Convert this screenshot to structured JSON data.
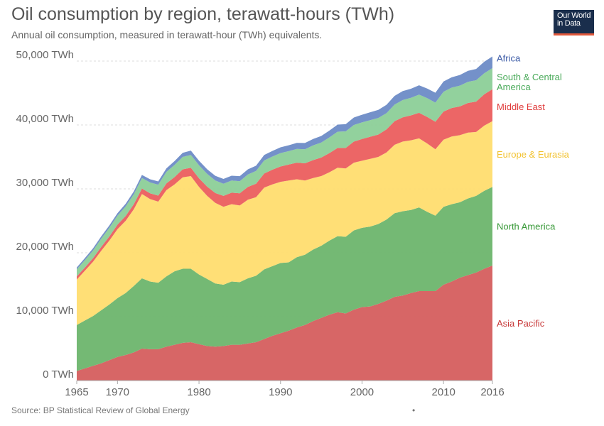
{
  "header": {
    "title": "Oil consumption by region, terawatt-hours (TWh)",
    "subtitle": "Annual oil consumption, measured in terawatt-hour (TWh) equivalents."
  },
  "logo": {
    "line1": "Our World",
    "line2": "in Data"
  },
  "footer": {
    "source": "Source: BP Statistical Review of Global Energy",
    "dot": "•"
  },
  "chart_data": {
    "type": "area",
    "stacked": true,
    "title": "Oil consumption by region, terawatt-hours (TWh)",
    "subtitle": "Annual oil consumption, measured in terawatt-hour (TWh) equivalents.",
    "xlabel": "",
    "ylabel": "",
    "xlim": [
      1965,
      2016
    ],
    "ylim": [
      0,
      50000
    ],
    "grid": true,
    "legend_position": "right (labels at series ends)",
    "x_ticks": [
      1965,
      1970,
      1980,
      1990,
      2000,
      2010,
      2016
    ],
    "y_ticks": [
      {
        "value": 0,
        "label": "0 TWh"
      },
      {
        "value": 10000,
        "label": "10,000 TWh"
      },
      {
        "value": 20000,
        "label": "20,000 TWh"
      },
      {
        "value": 30000,
        "label": "30,000 TWh"
      },
      {
        "value": 40000,
        "label": "40,000 TWh"
      },
      {
        "value": 50000,
        "label": "50,000 TWh"
      }
    ],
    "x": [
      1965,
      1966,
      1967,
      1968,
      1969,
      1970,
      1971,
      1972,
      1973,
      1974,
      1975,
      1976,
      1977,
      1978,
      1979,
      1980,
      1981,
      1982,
      1983,
      1984,
      1985,
      1986,
      1987,
      1988,
      1989,
      1990,
      1991,
      1992,
      1993,
      1994,
      1995,
      1996,
      1997,
      1998,
      1999,
      2000,
      2001,
      2002,
      2003,
      2004,
      2005,
      2006,
      2007,
      2008,
      2009,
      2010,
      2011,
      2012,
      2013,
      2014,
      2015,
      2016
    ],
    "series": [
      {
        "name": "Asia Pacific",
        "color": "#d55e5e",
        "values": [
          1500,
          1900,
          2300,
          2700,
          3200,
          3700,
          4000,
          4400,
          5000,
          4900,
          4900,
          5300,
          5600,
          5900,
          6000,
          5700,
          5400,
          5300,
          5400,
          5600,
          5600,
          5800,
          6000,
          6500,
          7000,
          7400,
          7800,
          8300,
          8700,
          9300,
          9800,
          10300,
          10700,
          10500,
          11100,
          11500,
          11600,
          12000,
          12500,
          13100,
          13300,
          13700,
          14000,
          14000,
          14000,
          15000,
          15500,
          16100,
          16500,
          16900,
          17500,
          18000
        ]
      },
      {
        "name": "North America",
        "color": "#6db56d",
        "values": [
          7200,
          7500,
          7800,
          8300,
          8700,
          9200,
          9700,
          10400,
          11000,
          10600,
          10400,
          11000,
          11500,
          11600,
          11500,
          10900,
          10500,
          9900,
          9600,
          9900,
          9800,
          10200,
          10400,
          10900,
          10900,
          11000,
          10700,
          11000,
          11000,
          11200,
          11300,
          11600,
          11900,
          12000,
          12400,
          12400,
          12500,
          12500,
          12700,
          13100,
          13200,
          13000,
          13100,
          12400,
          11800,
          12200,
          12100,
          11800,
          12000,
          12000,
          12200,
          12300
        ]
      },
      {
        "name": "Europe & Eurasia",
        "color": "#ffdd6f",
        "values": [
          7100,
          7800,
          8500,
          9300,
          10000,
          10800,
          11300,
          12000,
          13200,
          12900,
          12700,
          13500,
          13600,
          14300,
          14500,
          13700,
          13000,
          12600,
          12200,
          12100,
          12000,
          12300,
          12300,
          12800,
          12800,
          12700,
          12800,
          12200,
          11600,
          11200,
          10900,
          10700,
          10700,
          10700,
          10600,
          10500,
          10600,
          10500,
          10500,
          10700,
          10900,
          10900,
          10800,
          10700,
          10400,
          10500,
          10600,
          10500,
          10300,
          10000,
          10200,
          10300
        ]
      },
      {
        "name": "Middle East",
        "color": "#eb5e5e",
        "values": [
          500,
          500,
          550,
          600,
          650,
          700,
          750,
          800,
          850,
          900,
          950,
          1050,
          1150,
          1250,
          1300,
          1350,
          1450,
          1550,
          1700,
          1800,
          1900,
          2000,
          2100,
          2200,
          2300,
          2400,
          2500,
          2600,
          2700,
          2800,
          2900,
          3000,
          3100,
          3200,
          3300,
          3400,
          3450,
          3500,
          3600,
          3700,
          3800,
          3900,
          4000,
          4150,
          4300,
          4400,
          4450,
          4500,
          4650,
          4750,
          4900,
          5000
        ]
      },
      {
        "name": "South & Central America",
        "color": "#8ccf98",
        "values": [
          1100,
          1150,
          1200,
          1300,
          1350,
          1400,
          1500,
          1550,
          1650,
          1700,
          1700,
          1800,
          1900,
          1950,
          2000,
          2050,
          2000,
          1950,
          1900,
          1900,
          1900,
          1950,
          2000,
          2050,
          2050,
          2100,
          2100,
          2150,
          2200,
          2300,
          2350,
          2450,
          2550,
          2600,
          2600,
          2600,
          2600,
          2600,
          2550,
          2600,
          2700,
          2750,
          2850,
          2950,
          3000,
          3100,
          3200,
          3250,
          3300,
          3350,
          3300,
          3300
        ]
      },
      {
        "name": "Africa",
        "color": "#6d8bc6",
        "values": [
          300,
          320,
          340,
          360,
          380,
          400,
          420,
          450,
          480,
          500,
          520,
          560,
          600,
          640,
          680,
          700,
          720,
          740,
          750,
          760,
          780,
          800,
          830,
          850,
          880,
          900,
          920,
          950,
          980,
          1000,
          1030,
          1080,
          1110,
          1130,
          1160,
          1200,
          1230,
          1260,
          1300,
          1360,
          1400,
          1420,
          1460,
          1500,
          1540,
          1600,
          1610,
          1670,
          1720,
          1760,
          1800,
          1820
        ]
      }
    ]
  }
}
